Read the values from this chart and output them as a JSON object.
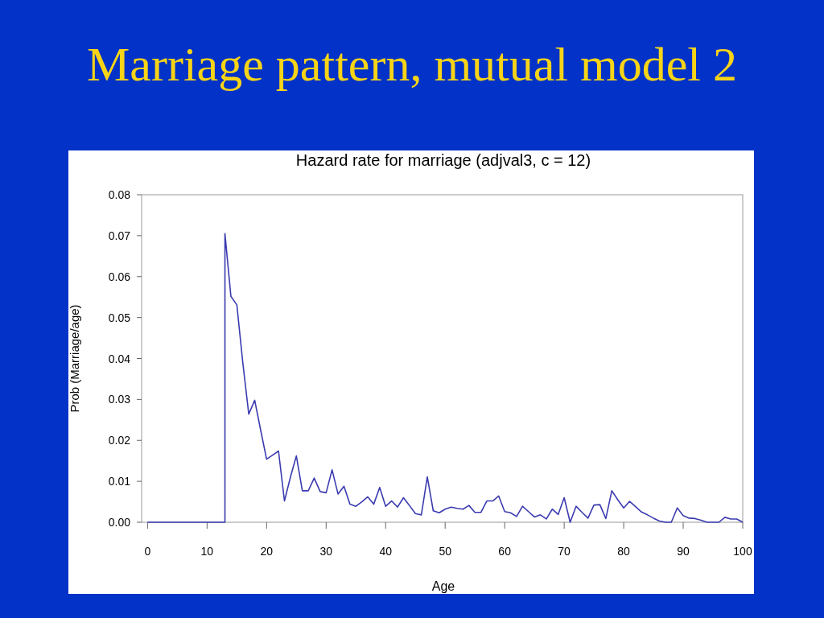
{
  "chart_data": {
    "type": "line",
    "title": "Marriage pattern, mutual model 2",
    "subtitle": "Hazard rate for marriage (adjval3, c = 12)",
    "xlabel": "Age",
    "ylabel": "Prob (Marriage/age)",
    "xlim": [
      -1,
      100
    ],
    "xticks": [
      0,
      10,
      20,
      30,
      40,
      50,
      60,
      70,
      80,
      90,
      100
    ],
    "ylim": [
      0,
      0.08
    ],
    "yticks": [
      {
        "value": 0,
        "label": "0.00"
      },
      {
        "value": 0.01,
        "label": "0.01"
      },
      {
        "value": 0.02,
        "label": "0.02"
      },
      {
        "value": 0.03,
        "label": "0.03"
      },
      {
        "value": 0.04,
        "label": "0.04"
      },
      {
        "value": 0.05,
        "label": "0.05"
      },
      {
        "value": 0.06,
        "label": "0.06"
      },
      {
        "value": 0.07,
        "label": "0.07"
      },
      {
        "value": 0.08,
        "label": "0.08"
      }
    ],
    "grid": false,
    "marker": "none",
    "line_style": "solid",
    "series": [
      {
        "color": "#3b3bb0",
        "x": [
          0,
          13,
          13,
          14,
          15,
          16,
          17,
          18,
          19,
          20,
          21,
          22,
          23,
          24,
          25,
          26,
          27,
          28,
          29,
          30,
          31,
          32,
          33,
          34,
          35,
          36,
          37,
          38,
          39,
          40,
          41,
          42,
          43,
          44,
          45,
          46,
          47,
          48,
          49,
          50,
          51,
          52,
          53,
          54,
          55,
          56,
          57,
          58,
          59,
          60,
          61,
          62,
          63,
          64,
          65,
          66,
          67,
          68,
          69,
          70,
          71,
          72,
          73,
          74,
          75,
          76,
          77,
          78,
          79,
          80,
          81,
          82,
          83,
          84,
          85,
          86,
          87,
          88,
          89,
          90,
          91,
          92,
          93,
          94,
          95,
          96,
          97,
          98,
          99,
          100
        ],
        "values": [
          0,
          0,
          0.0705,
          0.0552,
          0.0531,
          0.039,
          0.0264,
          0.0298,
          0.0225,
          0.0154,
          0.0164,
          0.0174,
          0.0052,
          0.011,
          0.0162,
          0.0077,
          0.0077,
          0.0108,
          0.0075,
          0.0072,
          0.0128,
          0.0069,
          0.0088,
          0.0044,
          0.0039,
          0.005,
          0.0062,
          0.0044,
          0.0085,
          0.0039,
          0.0052,
          0.0037,
          0.006,
          0.0041,
          0.0021,
          0.0018,
          0.0111,
          0.0028,
          0.0023,
          0.0032,
          0.0037,
          0.0034,
          0.0032,
          0.0041,
          0.0024,
          0.0024,
          0.0052,
          0.0052,
          0.0064,
          0.0026,
          0.0023,
          0.0014,
          0.0039,
          0.0026,
          0.0013,
          0.0018,
          0.0008,
          0.0032,
          0.0019,
          0.006,
          0,
          0.0039,
          0.0024,
          0.001,
          0.0042,
          0.0043,
          0.0009,
          0.0077,
          0.0055,
          0.0035,
          0.0051,
          0.0038,
          0.0025,
          0.0018,
          0.001,
          0.0003,
          0,
          0,
          0.0035,
          0.0016,
          0.001,
          0.0009,
          0.0005,
          0,
          0,
          0,
          0.0012,
          0.0008,
          0.0008,
          0
        ]
      }
    ]
  }
}
